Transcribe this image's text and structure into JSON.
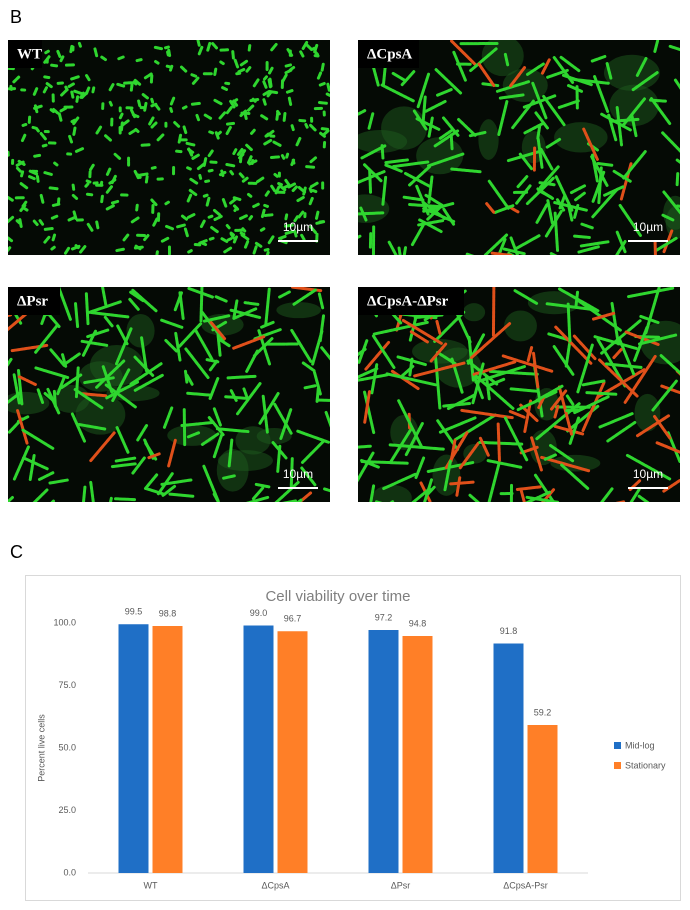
{
  "figure": {
    "panel_b": {
      "label": "B",
      "images": [
        {
          "label": "WT",
          "scale_bar": "10µm"
        },
        {
          "label": "ΔCpsA",
          "scale_bar": "10µm"
        },
        {
          "label": "ΔPsr",
          "scale_bar": "10µm"
        },
        {
          "label": "ΔCpsA-ΔPsr",
          "scale_bar": "10µm"
        }
      ]
    },
    "panel_c": {
      "label": "C"
    }
  },
  "chart_data": {
    "type": "bar",
    "title": "Cell viability over time",
    "y_label": "Percent live cells",
    "categories": [
      "WT",
      "ΔCpsA",
      "ΔPsr",
      "ΔCpsA-Psr"
    ],
    "series": [
      {
        "name": "Mid-log",
        "color": "#1f6fc6",
        "values": [
          99.5,
          99.0,
          97.2,
          91.8
        ],
        "value_labels": [
          "99.5",
          "99.0",
          "97.2",
          "91.8"
        ]
      },
      {
        "name": "Stationary",
        "color": "#ff7f27",
        "values": [
          98.8,
          96.7,
          94.8,
          59.2
        ],
        "value_labels": [
          "98.8",
          "96.7",
          "94.8",
          "59.2"
        ]
      }
    ],
    "ylim": [
      0,
      100
    ],
    "yticks": [
      {
        "value": 0,
        "label": "0.0"
      },
      {
        "value": 25,
        "label": "25.0"
      },
      {
        "value": 50,
        "label": "50.0"
      },
      {
        "value": 75,
        "label": "75.0"
      },
      {
        "value": 100,
        "label": "100.0"
      }
    ],
    "grid": false,
    "legend": "right"
  }
}
